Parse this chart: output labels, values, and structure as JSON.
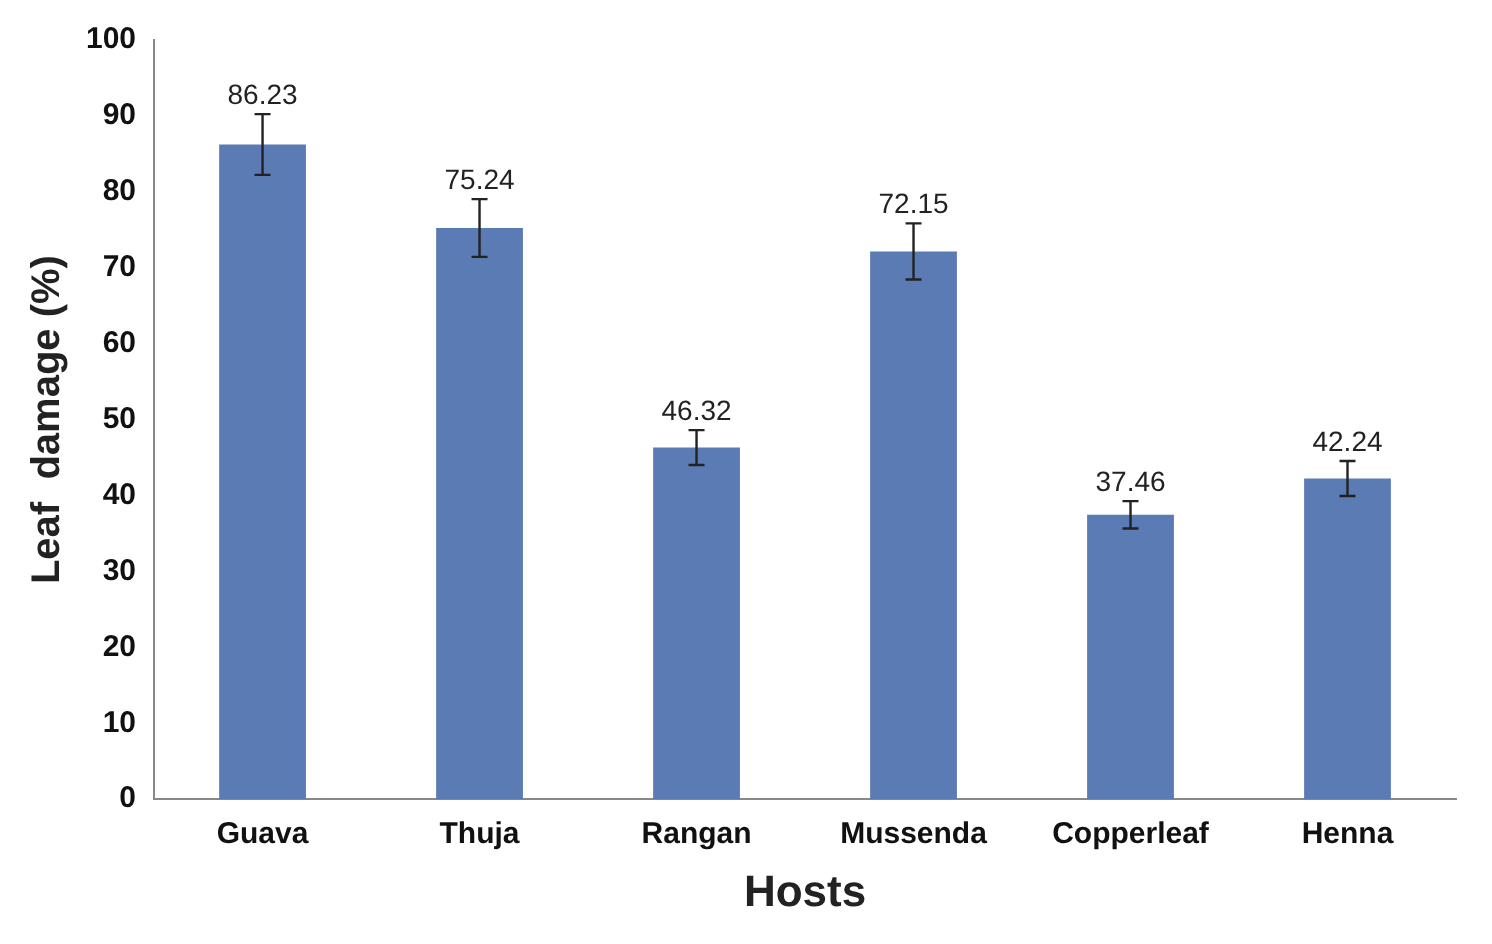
{
  "chart_data": {
    "type": "bar",
    "xlabel": "Hosts",
    "ylabel": "Leaf  damage (%)",
    "categories": [
      "Guava",
      "Thuja",
      "Rangan",
      "Mussenda",
      "Copperleaf",
      "Henna"
    ],
    "values": [
      86.23,
      75.24,
      46.32,
      72.15,
      37.46,
      42.24
    ],
    "errors": [
      4,
      3.8,
      2.3,
      3.7,
      1.8,
      2.3
    ],
    "color": "#5b7bb4",
    "data_labels": true,
    "grid": false,
    "legend": false,
    "ylim": [
      0,
      100
    ],
    "yticks": [
      0,
      10,
      20,
      30,
      40,
      50,
      60,
      70,
      80,
      90,
      100
    ]
  }
}
